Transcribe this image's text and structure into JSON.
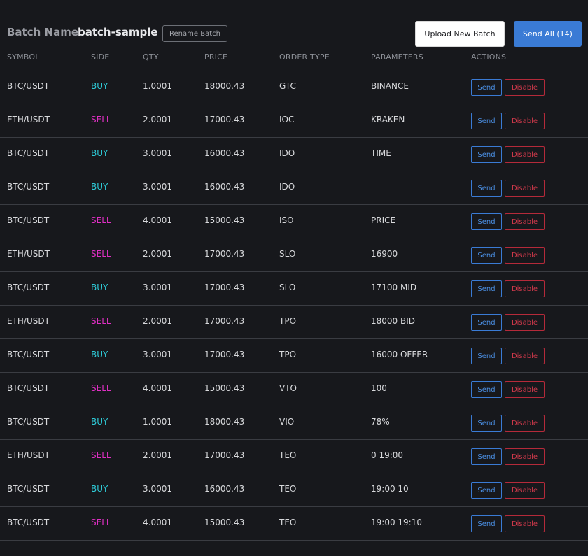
{
  "header": {
    "batch_label": "Batch Name:",
    "batch_name": "batch-sample",
    "rename_label": "Rename Batch",
    "upload_label": "Upload New Batch",
    "send_all_label": "Send All (14)"
  },
  "columns": {
    "symbol": "SYMBOL",
    "side": "SIDE",
    "qty": "QTY",
    "price": "PRICE",
    "order_type": "ORDER TYPE",
    "parameters": "PARAMETERS",
    "actions": "ACTIONS"
  },
  "action_labels": {
    "send": "Send",
    "disable": "Disable"
  },
  "colors": {
    "buy": "#2ec9d6",
    "sell": "#e02fc4",
    "send": "#3a7bd5",
    "disable": "#b52a3a"
  },
  "rows": [
    {
      "symbol": "BTC/USDT",
      "side": "BUY",
      "qty": "1.0001",
      "price": "18000.43",
      "order_type": "GTC",
      "parameters": "BINANCE"
    },
    {
      "symbol": "ETH/USDT",
      "side": "SELL",
      "qty": "2.0001",
      "price": "17000.43",
      "order_type": "IOC",
      "parameters": "KRAKEN"
    },
    {
      "symbol": "BTC/USDT",
      "side": "BUY",
      "qty": "3.0001",
      "price": "16000.43",
      "order_type": "IDO",
      "parameters": "TIME"
    },
    {
      "symbol": "BTC/USDT",
      "side": "BUY",
      "qty": "3.0001",
      "price": "16000.43",
      "order_type": "IDO",
      "parameters": ""
    },
    {
      "symbol": "BTC/USDT",
      "side": "SELL",
      "qty": "4.0001",
      "price": "15000.43",
      "order_type": "ISO",
      "parameters": "PRICE"
    },
    {
      "symbol": "ETH/USDT",
      "side": "SELL",
      "qty": "2.0001",
      "price": "17000.43",
      "order_type": "SLO",
      "parameters": "16900"
    },
    {
      "symbol": "BTC/USDT",
      "side": "BUY",
      "qty": "3.0001",
      "price": "17000.43",
      "order_type": "SLO",
      "parameters": "17100 MID"
    },
    {
      "symbol": "ETH/USDT",
      "side": "SELL",
      "qty": "2.0001",
      "price": "17000.43",
      "order_type": "TPO",
      "parameters": "18000 BID"
    },
    {
      "symbol": "BTC/USDT",
      "side": "BUY",
      "qty": "3.0001",
      "price": "17000.43",
      "order_type": "TPO",
      "parameters": "16000 OFFER"
    },
    {
      "symbol": "BTC/USDT",
      "side": "SELL",
      "qty": "4.0001",
      "price": "15000.43",
      "order_type": "VTO",
      "parameters": "100"
    },
    {
      "symbol": "BTC/USDT",
      "side": "BUY",
      "qty": "1.0001",
      "price": "18000.43",
      "order_type": "VIO",
      "parameters": "78%"
    },
    {
      "symbol": "ETH/USDT",
      "side": "SELL",
      "qty": "2.0001",
      "price": "17000.43",
      "order_type": "TEO",
      "parameters": "0 19:00"
    },
    {
      "symbol": "BTC/USDT",
      "side": "BUY",
      "qty": "3.0001",
      "price": "16000.43",
      "order_type": "TEO",
      "parameters": "19:00 10"
    },
    {
      "symbol": "BTC/USDT",
      "side": "SELL",
      "qty": "4.0001",
      "price": "15000.43",
      "order_type": "TEO",
      "parameters": "19:00 19:10"
    }
  ]
}
